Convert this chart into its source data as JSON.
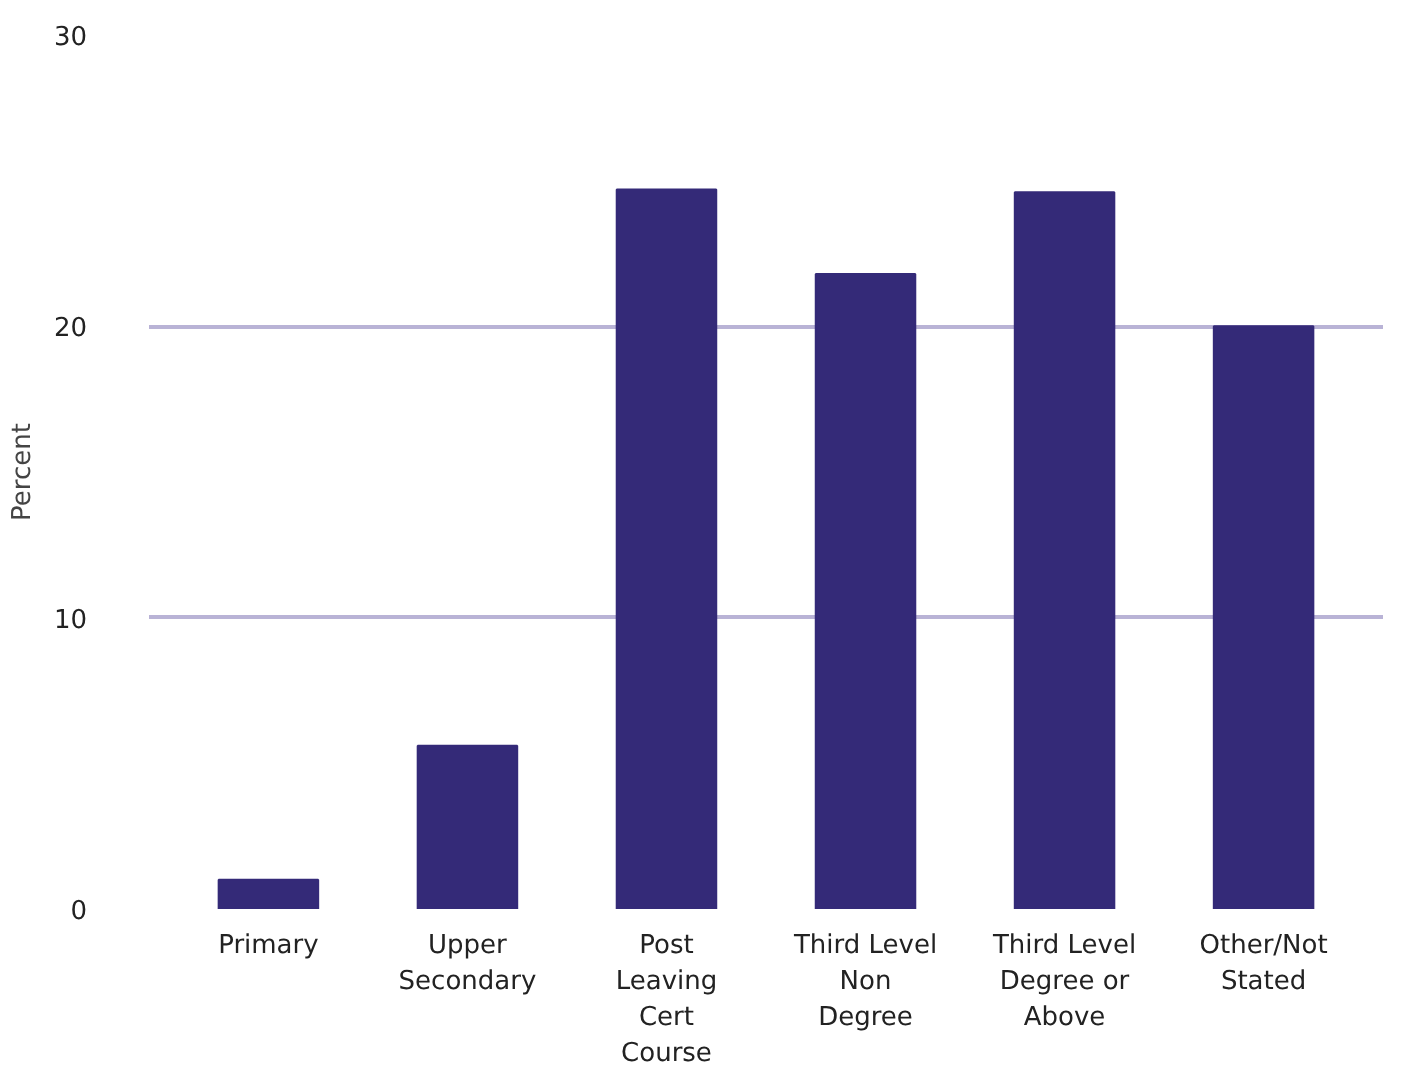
{
  "chart_data": {
    "type": "bar",
    "ylabel": "Percent",
    "categories": [
      "Primary",
      "Upper\nSecondary",
      "Post\nLeaving\nCert\nCourse",
      "Third Level\nNon\nDegree",
      "Third Level\nDegree or\nAbove",
      "Other/Not\nStated"
    ],
    "values": [
      1.0,
      5.6,
      24.7,
      21.8,
      24.6,
      20.0
    ],
    "color": "#342a78",
    "ylim": [
      0,
      30
    ],
    "yticks": [
      0,
      10,
      20,
      30
    ],
    "grid": "y"
  }
}
